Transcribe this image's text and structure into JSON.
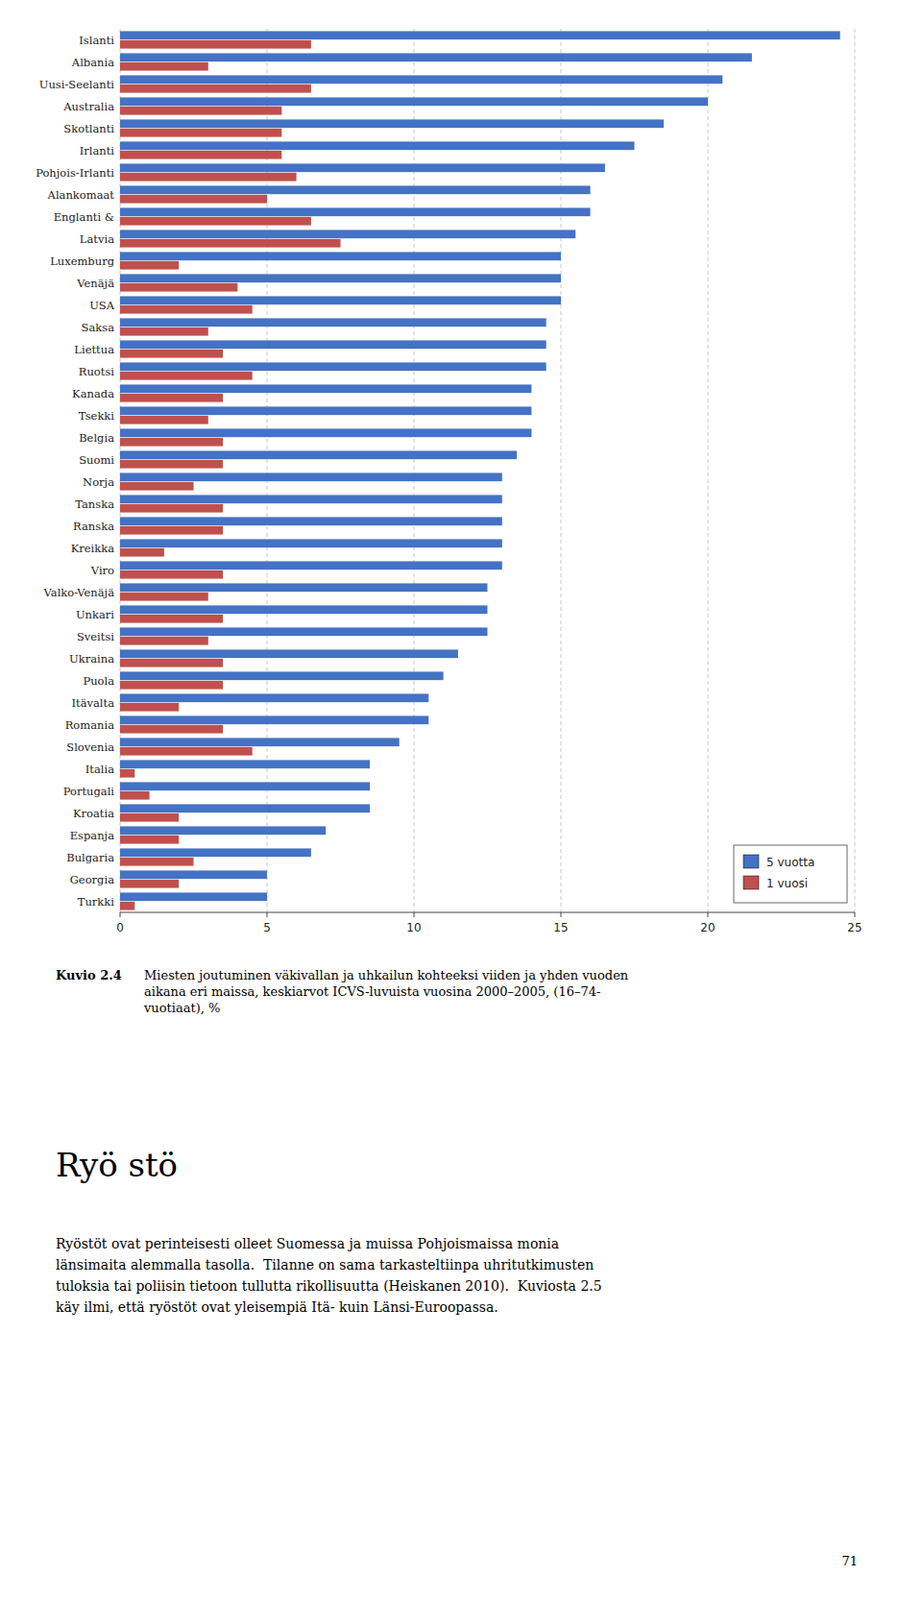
{
  "chart_data": {
    "type": "bar",
    "orientation": "horizontal",
    "title": "Kuvio 2.4",
    "subtitle": "Miesten joutuminen väkivallan ja uhkailun kohteeksi viiden ja yhden vuoden\naikana eri maissa, keskiarvot ICVS-luvuista vuosina 2000–2005, (16–74-\nvuotiaat), %",
    "categories": [
      "Islanti",
      "Albania",
      "Uusi-Seelanti",
      "Australia",
      "Skotlanti",
      "Irlanti",
      "Pohjois-Irlanti",
      "Alankomaat",
      "Englanti &",
      "Latvia",
      "Luxemburg",
      "Venäjä",
      "USA",
      "Saksa",
      "Liettua",
      "Ruotsi",
      "Kanada",
      "Tsekki",
      "Belgia",
      "Suomi",
      "Norja",
      "Tanska",
      "Ranska",
      "Kreikka",
      "Viro",
      "Valko-Venäjä",
      "Unkari",
      "Sveitsi",
      "Ukraina",
      "Puola",
      "Itävalta",
      "Romania",
      "Slovenia",
      "Italia",
      "Portugali",
      "Kroatia",
      "Espanja",
      "Bulgaria",
      "Georgia",
      "Turkki"
    ],
    "series": [
      {
        "name": "5 vuotta",
        "color": "#4472C4",
        "values": [
          24.5,
          21.5,
          20.5,
          20.0,
          18.5,
          17.5,
          16.5,
          16.0,
          16.0,
          15.5,
          15.0,
          15.0,
          15.0,
          14.5,
          14.5,
          14.5,
          14.0,
          14.0,
          14.0,
          13.5,
          13.0,
          13.0,
          13.0,
          13.0,
          13.0,
          12.5,
          12.5,
          12.5,
          11.5,
          11.0,
          10.5,
          10.5,
          9.5,
          8.5,
          8.5,
          8.5,
          7.0,
          6.5,
          5.0,
          5.0
        ]
      },
      {
        "name": "1 vuosi",
        "color": "#C0504D",
        "values": [
          6.5,
          3.0,
          6.5,
          5.5,
          5.5,
          5.5,
          6.0,
          5.0,
          6.5,
          7.5,
          2.0,
          4.0,
          4.5,
          3.0,
          3.5,
          4.5,
          3.5,
          3.0,
          3.5,
          3.5,
          2.5,
          3.5,
          3.5,
          1.5,
          3.5,
          3.0,
          3.5,
          3.0,
          3.5,
          3.5,
          2.0,
          3.5,
          4.5,
          0.5,
          1.0,
          2.0,
          2.0,
          2.5,
          2.0,
          0.5
        ]
      }
    ],
    "xlim": [
      0,
      25
    ],
    "xticks": [
      0,
      5,
      10,
      15,
      20,
      25
    ],
    "grid": true,
    "legend": "lower right"
  },
  "page": {
    "heading": "Ryö stö",
    "body": "Ryöstöt ovat perinteisesti olleet Suomessa ja muissa Pohjoismaissa monia\nlänsimaita alemmalla tasolla.  Tilanne on sama tarkasteltiinpa uhritutkimusten\ntuloksia tai poliisin tietoon tullutta rikollisuutta (Heiskanen 2010).  Kuviosta 2.5\nkäy ilmi, että ryöstöt ovat yleisempiä Itä- kuin Länsi-Euroopassa.",
    "page_number": "71"
  }
}
